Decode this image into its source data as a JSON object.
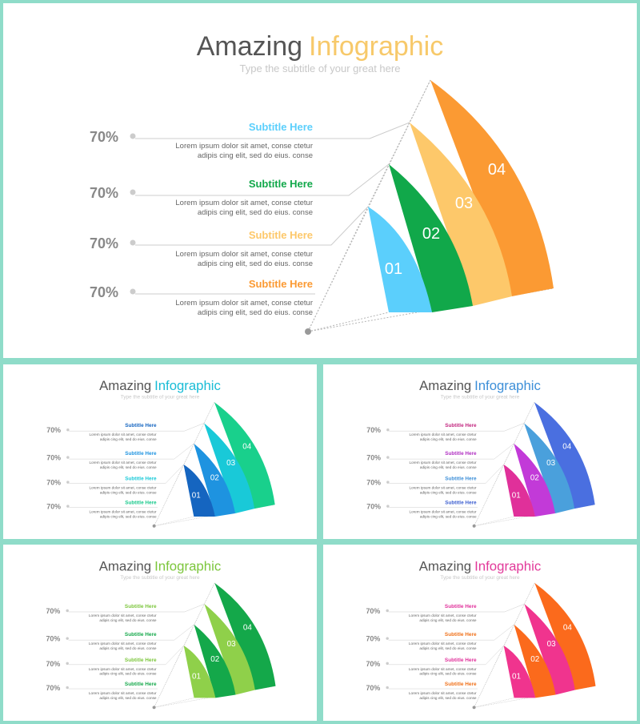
{
  "panels": [
    {
      "id": "main",
      "title_a": "Amazing",
      "title_b": "Infographic",
      "subtitle": "Type the subtitle of your great here",
      "colors": {
        "title_b": "#f7c96a",
        "segments": [
          "#5bcffc",
          "#11a84a",
          "#fdc86a",
          "#fb9a33"
        ],
        "subtitles": [
          "#5bcffc",
          "#11a84a",
          "#fdc86a",
          "#fb9a33"
        ]
      },
      "items": [
        {
          "percent": "70%",
          "subtitle": "Subtitle Here",
          "line1": "Lorem ipsum dolor sit amet, conse ctetur",
          "line2": "adipis cing elit, sed do eius. conse"
        },
        {
          "percent": "70%",
          "subtitle": "Subtitle Here",
          "line1": "Lorem ipsum dolor sit amet, conse ctetur",
          "line2": "adipis cing elit, sed do eius. conse"
        },
        {
          "percent": "70%",
          "subtitle": "Subtitle Here",
          "line1": "Lorem ipsum dolor sit amet, conse ctetur",
          "line2": "adipis cing elit, sed do eius. conse"
        },
        {
          "percent": "70%",
          "subtitle": "Subtitle Here",
          "line1": "Lorem ipsum dolor sit amet, conse ctetur",
          "line2": "adipis cing elit, sed do eius. conse"
        }
      ],
      "segment_labels": [
        "01",
        "02",
        "03",
        "04"
      ]
    },
    {
      "id": "blue",
      "title_a": "Amazing",
      "title_b": "Infographic",
      "subtitle": "Type the subtitle of your great here",
      "colors": {
        "title_b": "#19bcd6",
        "segments": [
          "#1565c0",
          "#1e93e0",
          "#19c9d8",
          "#19d08c"
        ],
        "subtitles": [
          "#1565c0",
          "#1e93e0",
          "#19c9d8",
          "#19c98c"
        ]
      },
      "items": [
        {
          "percent": "70%",
          "subtitle": "Subtitle Here",
          "line1": "Lorem ipsum dolor sit amet, conse ctetur",
          "line2": "adipis cing elit, sed do eius. conse"
        },
        {
          "percent": "70%",
          "subtitle": "Subtitle Here",
          "line1": "Lorem ipsum dolor sit amet, conse ctetur",
          "line2": "adipis cing elit, sed do eius. conse"
        },
        {
          "percent": "70%",
          "subtitle": "Subtitle Here",
          "line1": "Lorem ipsum dolor sit amet, conse ctetur",
          "line2": "adipis cing elit, sed do eius. conse"
        },
        {
          "percent": "70%",
          "subtitle": "Subtitle Here",
          "line1": "Lorem ipsum dolor sit amet, conse ctetur",
          "line2": "adipis cing elit, sed do eius. conse"
        }
      ],
      "segment_labels": [
        "01",
        "02",
        "03",
        "04"
      ]
    },
    {
      "id": "purple",
      "title_a": "Amazing",
      "title_b": "Infographic",
      "subtitle": "Type the subtitle of your great here",
      "colors": {
        "title_b": "#3d8fd8",
        "segments": [
          "#e0309a",
          "#c23ad8",
          "#4aa0dc",
          "#4a6fe0"
        ],
        "subtitles": [
          "#c2267f",
          "#b02ec2",
          "#3d8fd8",
          "#3d5fd0"
        ]
      },
      "items": [
        {
          "percent": "70%",
          "subtitle": "Subtitle Here",
          "line1": "Lorem ipsum dolor sit amet, conse ctetur",
          "line2": "adipis cing elit, sed do eius. conse"
        },
        {
          "percent": "70%",
          "subtitle": "Subtitle Here",
          "line1": "Lorem ipsum dolor sit amet, conse ctetur",
          "line2": "adipis cing elit, sed do eius. conse"
        },
        {
          "percent": "70%",
          "subtitle": "Subtitle Here",
          "line1": "Lorem ipsum dolor sit amet, conse ctetur",
          "line2": "adipis cing elit, sed do eius. conse"
        },
        {
          "percent": "70%",
          "subtitle": "Subtitle Here",
          "line1": "Lorem ipsum dolor sit amet, conse ctetur",
          "line2": "adipis cing elit, sed do eius. conse"
        }
      ],
      "segment_labels": [
        "01",
        "02",
        "03",
        "04"
      ]
    },
    {
      "id": "green",
      "title_a": "Amazing",
      "title_b": "Infographic",
      "subtitle": "Type the subtitle of your great here",
      "colors": {
        "title_b": "#7cc63c",
        "segments": [
          "#8fd04a",
          "#14a84a",
          "#8fd04a",
          "#14a84a"
        ],
        "subtitles": [
          "#7cc63c",
          "#14a84a",
          "#7cc63c",
          "#14a84a"
        ]
      },
      "items": [
        {
          "percent": "70%",
          "subtitle": "Subtitle Here",
          "line1": "Lorem ipsum dolor sit amet, conse ctetur",
          "line2": "adipis cing elit, sed do eius. conse"
        },
        {
          "percent": "70%",
          "subtitle": "Subtitle Here",
          "line1": "Lorem ipsum dolor sit amet, conse ctetur",
          "line2": "adipis cing elit, sed do eius. conse"
        },
        {
          "percent": "70%",
          "subtitle": "Subtitle Here",
          "line1": "Lorem ipsum dolor sit amet, conse ctetur",
          "line2": "adipis cing elit, sed do eius. conse"
        },
        {
          "percent": "70%",
          "subtitle": "Subtitle Here",
          "line1": "Lorem ipsum dolor sit amet, conse ctetur",
          "line2": "adipis cing elit, sed do eius. conse"
        }
      ],
      "segment_labels": [
        "01",
        "02",
        "03",
        "04"
      ]
    },
    {
      "id": "pink",
      "title_a": "Amazing",
      "title_b": "Infographic",
      "subtitle": "Type the subtitle of your great here",
      "colors": {
        "title_b": "#e23a9a",
        "segments": [
          "#f0348e",
          "#fb6a1c",
          "#f0348e",
          "#fb6a1c"
        ],
        "subtitles": [
          "#e0309a",
          "#f07018",
          "#e0309a",
          "#f07018"
        ]
      },
      "items": [
        {
          "percent": "70%",
          "subtitle": "Subtitle Here",
          "line1": "Lorem ipsum dolor sit amet, conse ctetur",
          "line2": "adipis cing elit, sed do eius. conse"
        },
        {
          "percent": "70%",
          "subtitle": "Subtitle Here",
          "line1": "Lorem ipsum dolor sit amet, conse ctetur",
          "line2": "adipis cing elit, sed do eius. conse"
        },
        {
          "percent": "70%",
          "subtitle": "Subtitle Here",
          "line1": "Lorem ipsum dolor sit amet, conse ctetur",
          "line2": "adipis cing elit, sed do eius. conse"
        },
        {
          "percent": "70%",
          "subtitle": "Subtitle Here",
          "line1": "Lorem ipsum dolor sit amet, conse ctetur",
          "line2": "adipis cing elit, sed do eius. conse"
        }
      ],
      "segment_labels": [
        "01",
        "02",
        "03",
        "04"
      ]
    }
  ]
}
